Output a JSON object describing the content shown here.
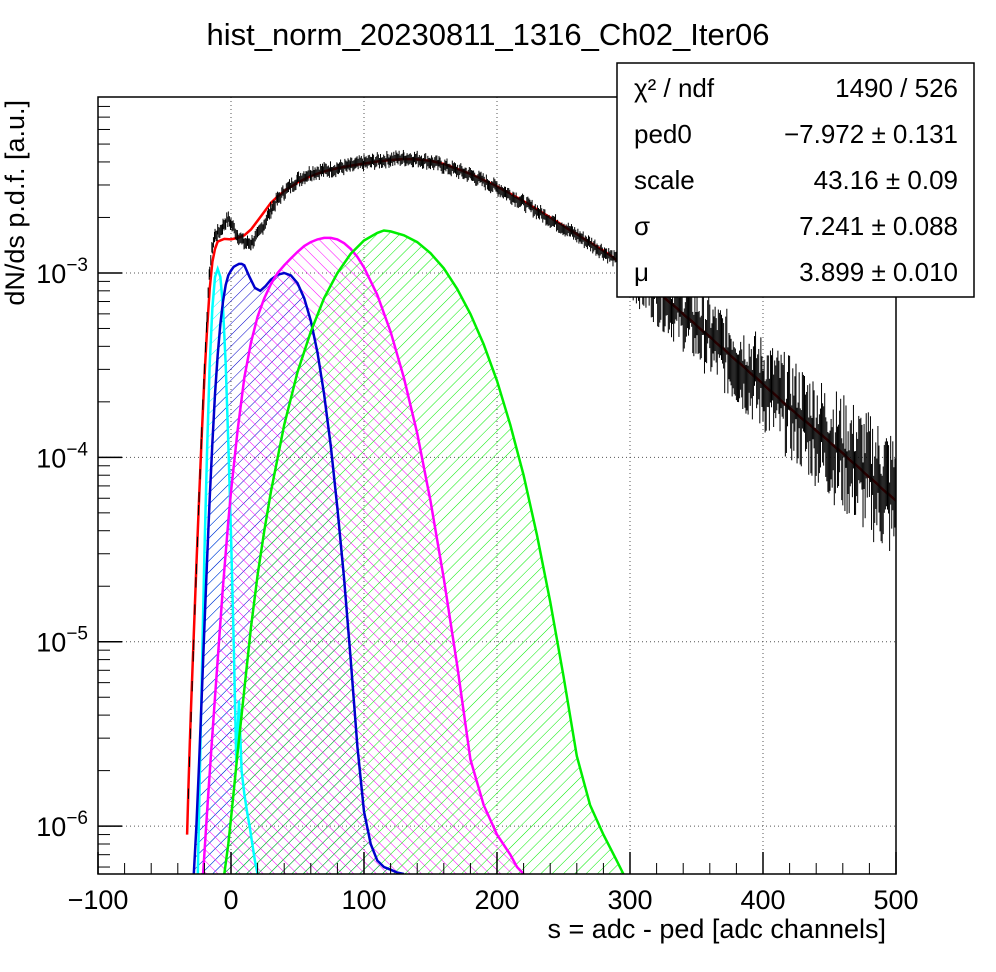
{
  "colors": {
    "fit_total": "#ff0000",
    "pedestal_peak": "#00ffff",
    "one_pe_peak": "#0000cc",
    "two_pe_peak": "#ff00ff",
    "three_pe_peak": "#00ee00",
    "data_points": "#000000",
    "grid": "#555555"
  },
  "chart_data": {
    "type": "line",
    "title": "hist_norm_20230811_1316_Ch02_Iter06",
    "xlabel": "s = adc - ped [adc channels]",
    "ylabel": "dN/ds p.d.f. [a.u.]",
    "xlim": [
      -100,
      500
    ],
    "ylim": [
      5.5e-07,
      0.009
    ],
    "y_scale": "log",
    "grid": true,
    "x_ticks": [
      {
        "value": -100,
        "label": "−100"
      },
      {
        "value": 0,
        "label": "0"
      },
      {
        "value": 100,
        "label": "100"
      },
      {
        "value": 200,
        "label": "200"
      },
      {
        "value": 300,
        "label": "300"
      },
      {
        "value": 400,
        "label": "400"
      },
      {
        "value": 500,
        "label": "500"
      }
    ],
    "y_ticks": [
      {
        "value": 1e-06,
        "base": "10",
        "exp": "−6"
      },
      {
        "value": 1e-05,
        "base": "10",
        "exp": "−5"
      },
      {
        "value": 0.0001,
        "base": "10",
        "exp": "−4"
      },
      {
        "value": 0.001,
        "base": "10",
        "exp": "−3"
      }
    ],
    "series": [
      {
        "style": "points",
        "color": "#000000",
        "x": [
          -32,
          -30,
          -28,
          -26,
          -24,
          -22,
          -20,
          -18,
          -16,
          -14,
          -12,
          -10,
          -8,
          -6,
          -4,
          -2,
          0,
          5,
          10,
          15,
          20,
          25,
          30,
          35,
          40,
          50,
          60,
          70,
          80,
          90,
          100,
          110,
          120,
          130,
          140,
          150,
          160,
          180,
          200,
          220,
          240,
          260,
          280,
          300,
          320,
          340,
          360,
          380,
          400,
          420,
          440,
          460,
          480,
          500
        ],
        "y": [
          1.5e-06,
          4e-06,
          1e-05,
          2.5e-05,
          6e-05,
          0.00014,
          0.0003,
          0.0006,
          0.00105,
          0.0014,
          0.0016,
          0.00165,
          0.0017,
          0.0018,
          0.0019,
          0.00195,
          0.00185,
          0.0016,
          0.00145,
          0.00145,
          0.0016,
          0.00185,
          0.0022,
          0.0025,
          0.00275,
          0.0032,
          0.0035,
          0.0036,
          0.0037,
          0.0038,
          0.00395,
          0.00405,
          0.00415,
          0.0042,
          0.00415,
          0.004,
          0.0038,
          0.0034,
          0.0029,
          0.0024,
          0.00195,
          0.0016,
          0.0013,
          0.00105,
          0.0008,
          0.0006,
          0.00045,
          0.00033,
          0.00025,
          0.000185,
          0.00014,
          0.000105,
          8e-05,
          6e-05
        ]
      },
      {
        "style": "line",
        "color": "#ff0000",
        "x": [
          -33,
          -32,
          -31,
          -30,
          -28,
          -26,
          -24,
          -22,
          -20,
          -18,
          -16,
          -14,
          -12,
          -10,
          -5,
          0,
          5,
          10,
          15,
          20,
          25,
          30,
          35,
          40,
          50,
          60,
          70,
          80,
          90,
          100,
          110,
          120,
          130,
          140,
          150,
          160,
          180,
          200,
          220,
          240,
          260,
          280,
          300,
          320,
          340,
          360,
          380,
          400,
          420,
          440,
          460,
          480,
          500
        ],
        "y": [
          9e-07,
          1.6e-06,
          2.8e-06,
          4.5e-06,
          1.1e-05,
          2.6e-05,
          6e-05,
          0.00013,
          0.00027,
          0.0005,
          0.00082,
          0.00115,
          0.00135,
          0.00148,
          0.00153,
          0.00152,
          0.00155,
          0.0016,
          0.00172,
          0.00192,
          0.00215,
          0.0024,
          0.0026,
          0.00278,
          0.0031,
          0.00335,
          0.00355,
          0.0037,
          0.00382,
          0.00392,
          0.00402,
          0.0041,
          0.00415,
          0.00413,
          0.00405,
          0.0039,
          0.00345,
          0.00295,
          0.00245,
          0.002,
          0.00162,
          0.00132,
          0.00105,
          0.0008,
          0.0006,
          0.00045,
          0.000335,
          0.00025,
          0.000185,
          0.00014,
          0.000105,
          7.8e-05,
          5.8e-05
        ]
      },
      {
        "style": "hatched",
        "color": "#00ffff",
        "x": [
          -25,
          -24,
          -22,
          -20,
          -18,
          -16,
          -14,
          -12,
          -10,
          -8,
          -6,
          -4,
          -2,
          0,
          2,
          4,
          6,
          8,
          10,
          12,
          14,
          16,
          18,
          20
        ],
        "y": [
          5.5e-07,
          1.2e-06,
          6e-06,
          3e-05,
          0.00011,
          0.00032,
          0.00065,
          0.00095,
          0.00105,
          0.00095,
          0.00065,
          0.00032,
          0.00012,
          3.8e-05,
          1e-05,
          2.2e-06,
          4.8e-06,
          2e-06,
          1.5e-06,
          1.2e-06,
          1e-06,
          8e-07,
          6.5e-07,
          5.5e-07
        ]
      },
      {
        "style": "hatched",
        "color": "#0000cc",
        "x": [
          -28,
          -26,
          -24,
          -22,
          -20,
          -18,
          -16,
          -14,
          -12,
          -10,
          -8,
          -6,
          -4,
          -2,
          0,
          2,
          4,
          6,
          8,
          10,
          14,
          18,
          22,
          26,
          30,
          35,
          40,
          45,
          50,
          55,
          60,
          65,
          70,
          75,
          80,
          85,
          90,
          95,
          100,
          105,
          110,
          115,
          120,
          125,
          130
        ],
        "y": [
          5.5e-07,
          1e-06,
          2.2e-06,
          5e-06,
          1.2e-05,
          2.8e-05,
          6e-05,
          0.00012,
          0.00022,
          0.00036,
          0.00053,
          0.0007,
          0.00086,
          0.00097,
          0.00103,
          0.00108,
          0.0011,
          0.00112,
          0.00112,
          0.0011,
          0.00095,
          0.00083,
          0.0008,
          0.00085,
          0.00092,
          0.00098,
          0.001,
          0.00097,
          0.00088,
          0.00073,
          0.00055,
          0.00037,
          0.00022,
          0.000115,
          5.3e-05,
          2.2e-05,
          8e-06,
          2.7e-06,
          1.2e-06,
          8e-07,
          6.5e-07,
          6e-07,
          5.8e-07,
          5.6e-07,
          5.5e-07
        ]
      },
      {
        "style": "hatched",
        "color": "#ff00ff",
        "x": [
          -21,
          -18,
          -15,
          -12,
          -10,
          -6,
          -2,
          0,
          5,
          10,
          15,
          20,
          25,
          30,
          35,
          40,
          45,
          50,
          55,
          60,
          65,
          70,
          75,
          80,
          85,
          90,
          95,
          100,
          110,
          120,
          130,
          140,
          150,
          160,
          170,
          180,
          190,
          200,
          210,
          215,
          220
        ],
        "y": [
          5.5e-07,
          1.2e-06,
          2.5e-06,
          5e-06,
          8e-06,
          2e-05,
          4.5e-05,
          6.5e-05,
          0.00014,
          0.00027,
          0.00042,
          0.00058,
          0.00073,
          0.00087,
          0.001,
          0.0011,
          0.0012,
          0.0013,
          0.0014,
          0.00147,
          0.00152,
          0.00155,
          0.00155,
          0.00152,
          0.00145,
          0.00135,
          0.00122,
          0.00107,
          0.00076,
          0.00048,
          0.00027,
          0.000135,
          5.8e-05,
          2.2e-05,
          7.5e-06,
          2.3e-06,
          1.3e-06,
          9e-07,
          7e-07,
          6e-07,
          5.5e-07
        ]
      },
      {
        "style": "hatched",
        "color": "#00ee00",
        "x": [
          -5,
          -2,
          0,
          5,
          10,
          15,
          20,
          25,
          30,
          40,
          50,
          60,
          70,
          80,
          90,
          100,
          110,
          115,
          120,
          130,
          140,
          150,
          160,
          170,
          180,
          190,
          200,
          210,
          220,
          230,
          240,
          250,
          260,
          270,
          280,
          290,
          295
        ],
        "y": [
          5.5e-07,
          8e-07,
          1.1e-06,
          2.5e-06,
          5.5e-06,
          1.2e-05,
          2.3e-05,
          4e-05,
          6.5e-05,
          0.00015,
          0.00029,
          0.00048,
          0.00073,
          0.001,
          0.00127,
          0.0015,
          0.00165,
          0.0017,
          0.00168,
          0.0016,
          0.00147,
          0.00128,
          0.00106,
          0.00082,
          0.0006,
          0.00041,
          0.00026,
          0.00015,
          8e-05,
          3.8e-05,
          1.65e-05,
          6.5e-06,
          2.4e-06,
          1.3e-06,
          9e-07,
          6.5e-07,
          5.5e-07
        ]
      }
    ],
    "stats_box": {
      "rows": [
        {
          "name": "χ² / ndf",
          "value": "1490 / 526"
        },
        {
          "name": "ped0",
          "value": "−7.972 ± 0.131"
        },
        {
          "name": "scale",
          "value": "43.16 ± 0.09"
        },
        {
          "name": "σ",
          "value": "7.241 ± 0.088"
        },
        {
          "name": "μ",
          "value": "3.899 ± 0.010"
        }
      ]
    }
  }
}
